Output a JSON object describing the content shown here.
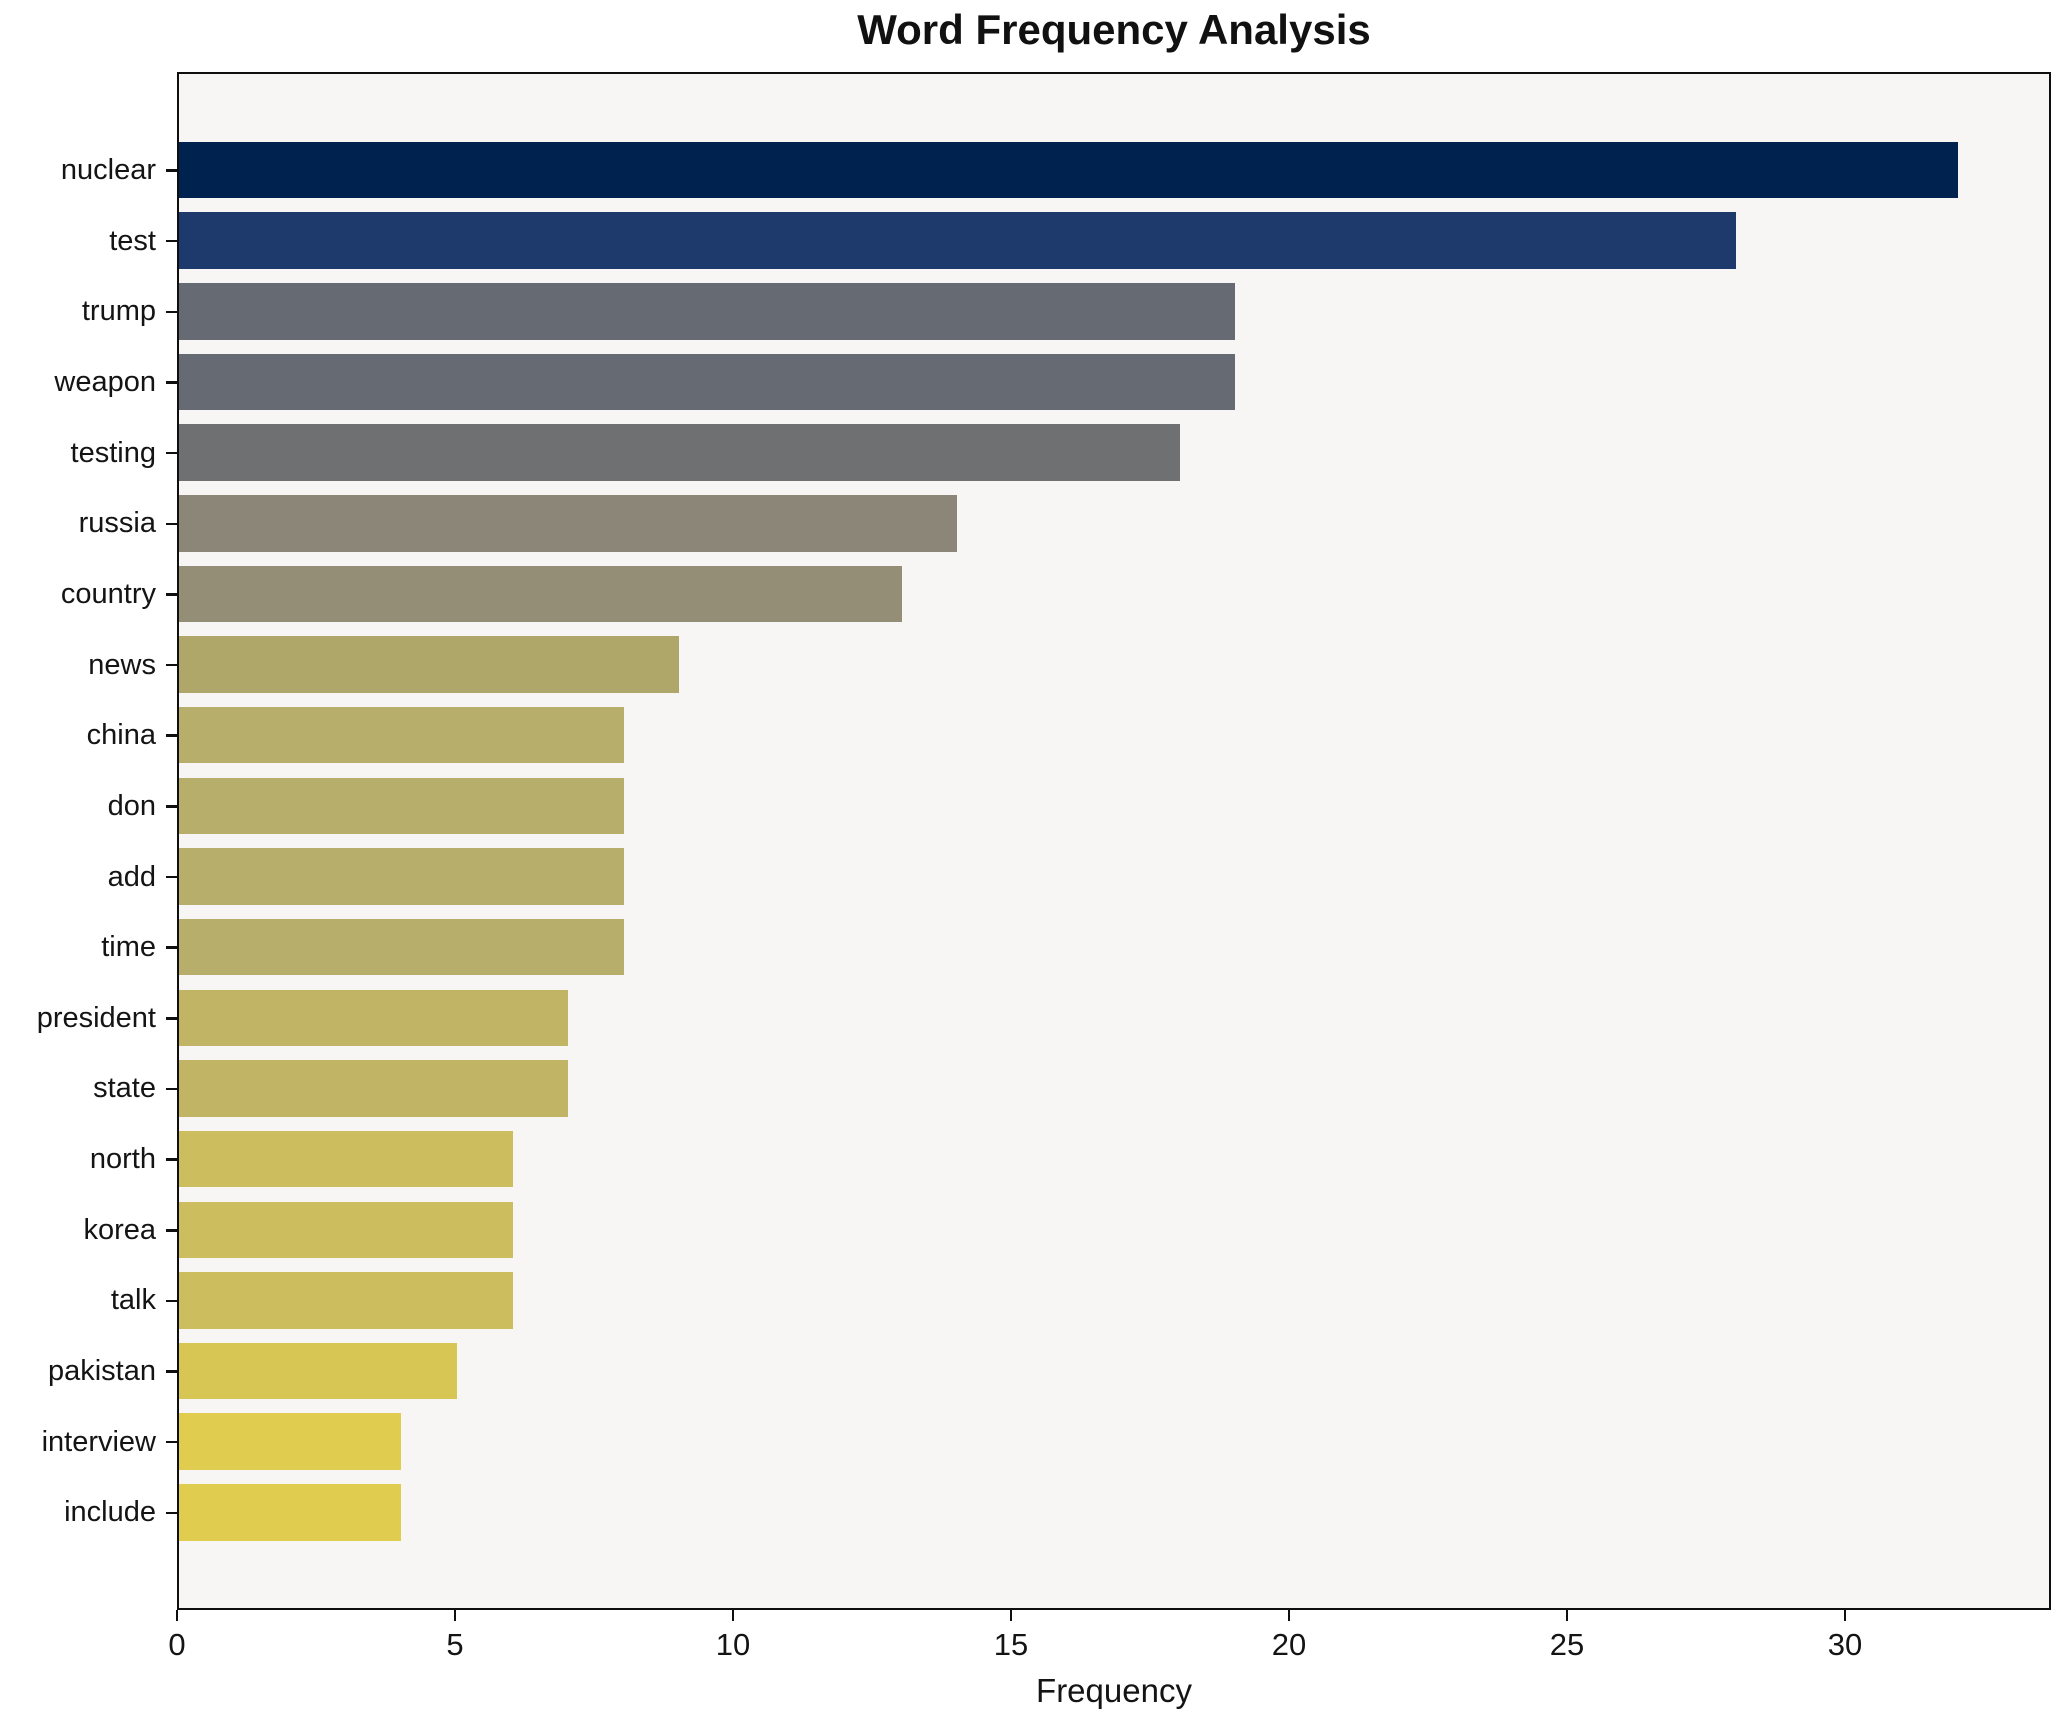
{
  "chart_data": {
    "type": "bar",
    "orientation": "horizontal",
    "title": "Word Frequency Analysis",
    "xlabel": "Frequency",
    "ylabel": "",
    "categories": [
      "nuclear",
      "test",
      "trump",
      "weapon",
      "testing",
      "russia",
      "country",
      "news",
      "china",
      "don",
      "add",
      "time",
      "president",
      "state",
      "north",
      "korea",
      "talk",
      "pakistan",
      "interview",
      "include"
    ],
    "values": [
      32,
      28,
      19,
      19,
      18,
      14,
      13,
      9,
      8,
      8,
      8,
      8,
      7,
      7,
      6,
      6,
      6,
      5,
      4,
      4
    ],
    "bar_colors": [
      "#00224E",
      "#1E3A6C",
      "#666B73",
      "#666B73",
      "#6F7072",
      "#8B8678",
      "#948E76",
      "#AFA66A",
      "#B8AE6B",
      "#B8AE6B",
      "#B8AE6B",
      "#B8AE6B",
      "#C1B465",
      "#C1B465",
      "#CCBE5E",
      "#CCBE5E",
      "#CCBE5E",
      "#D8C654",
      "#E0CC4E",
      "#E0CC4E"
    ],
    "xlim": [
      0,
      33.7
    ],
    "x_ticks": [
      0,
      5,
      10,
      15,
      20,
      25,
      30
    ],
    "grid": false,
    "legend": "none",
    "plot_background": "#F7F6F5",
    "figure_background": "#FFFFFF",
    "axis_color": "#0F0F0F"
  }
}
